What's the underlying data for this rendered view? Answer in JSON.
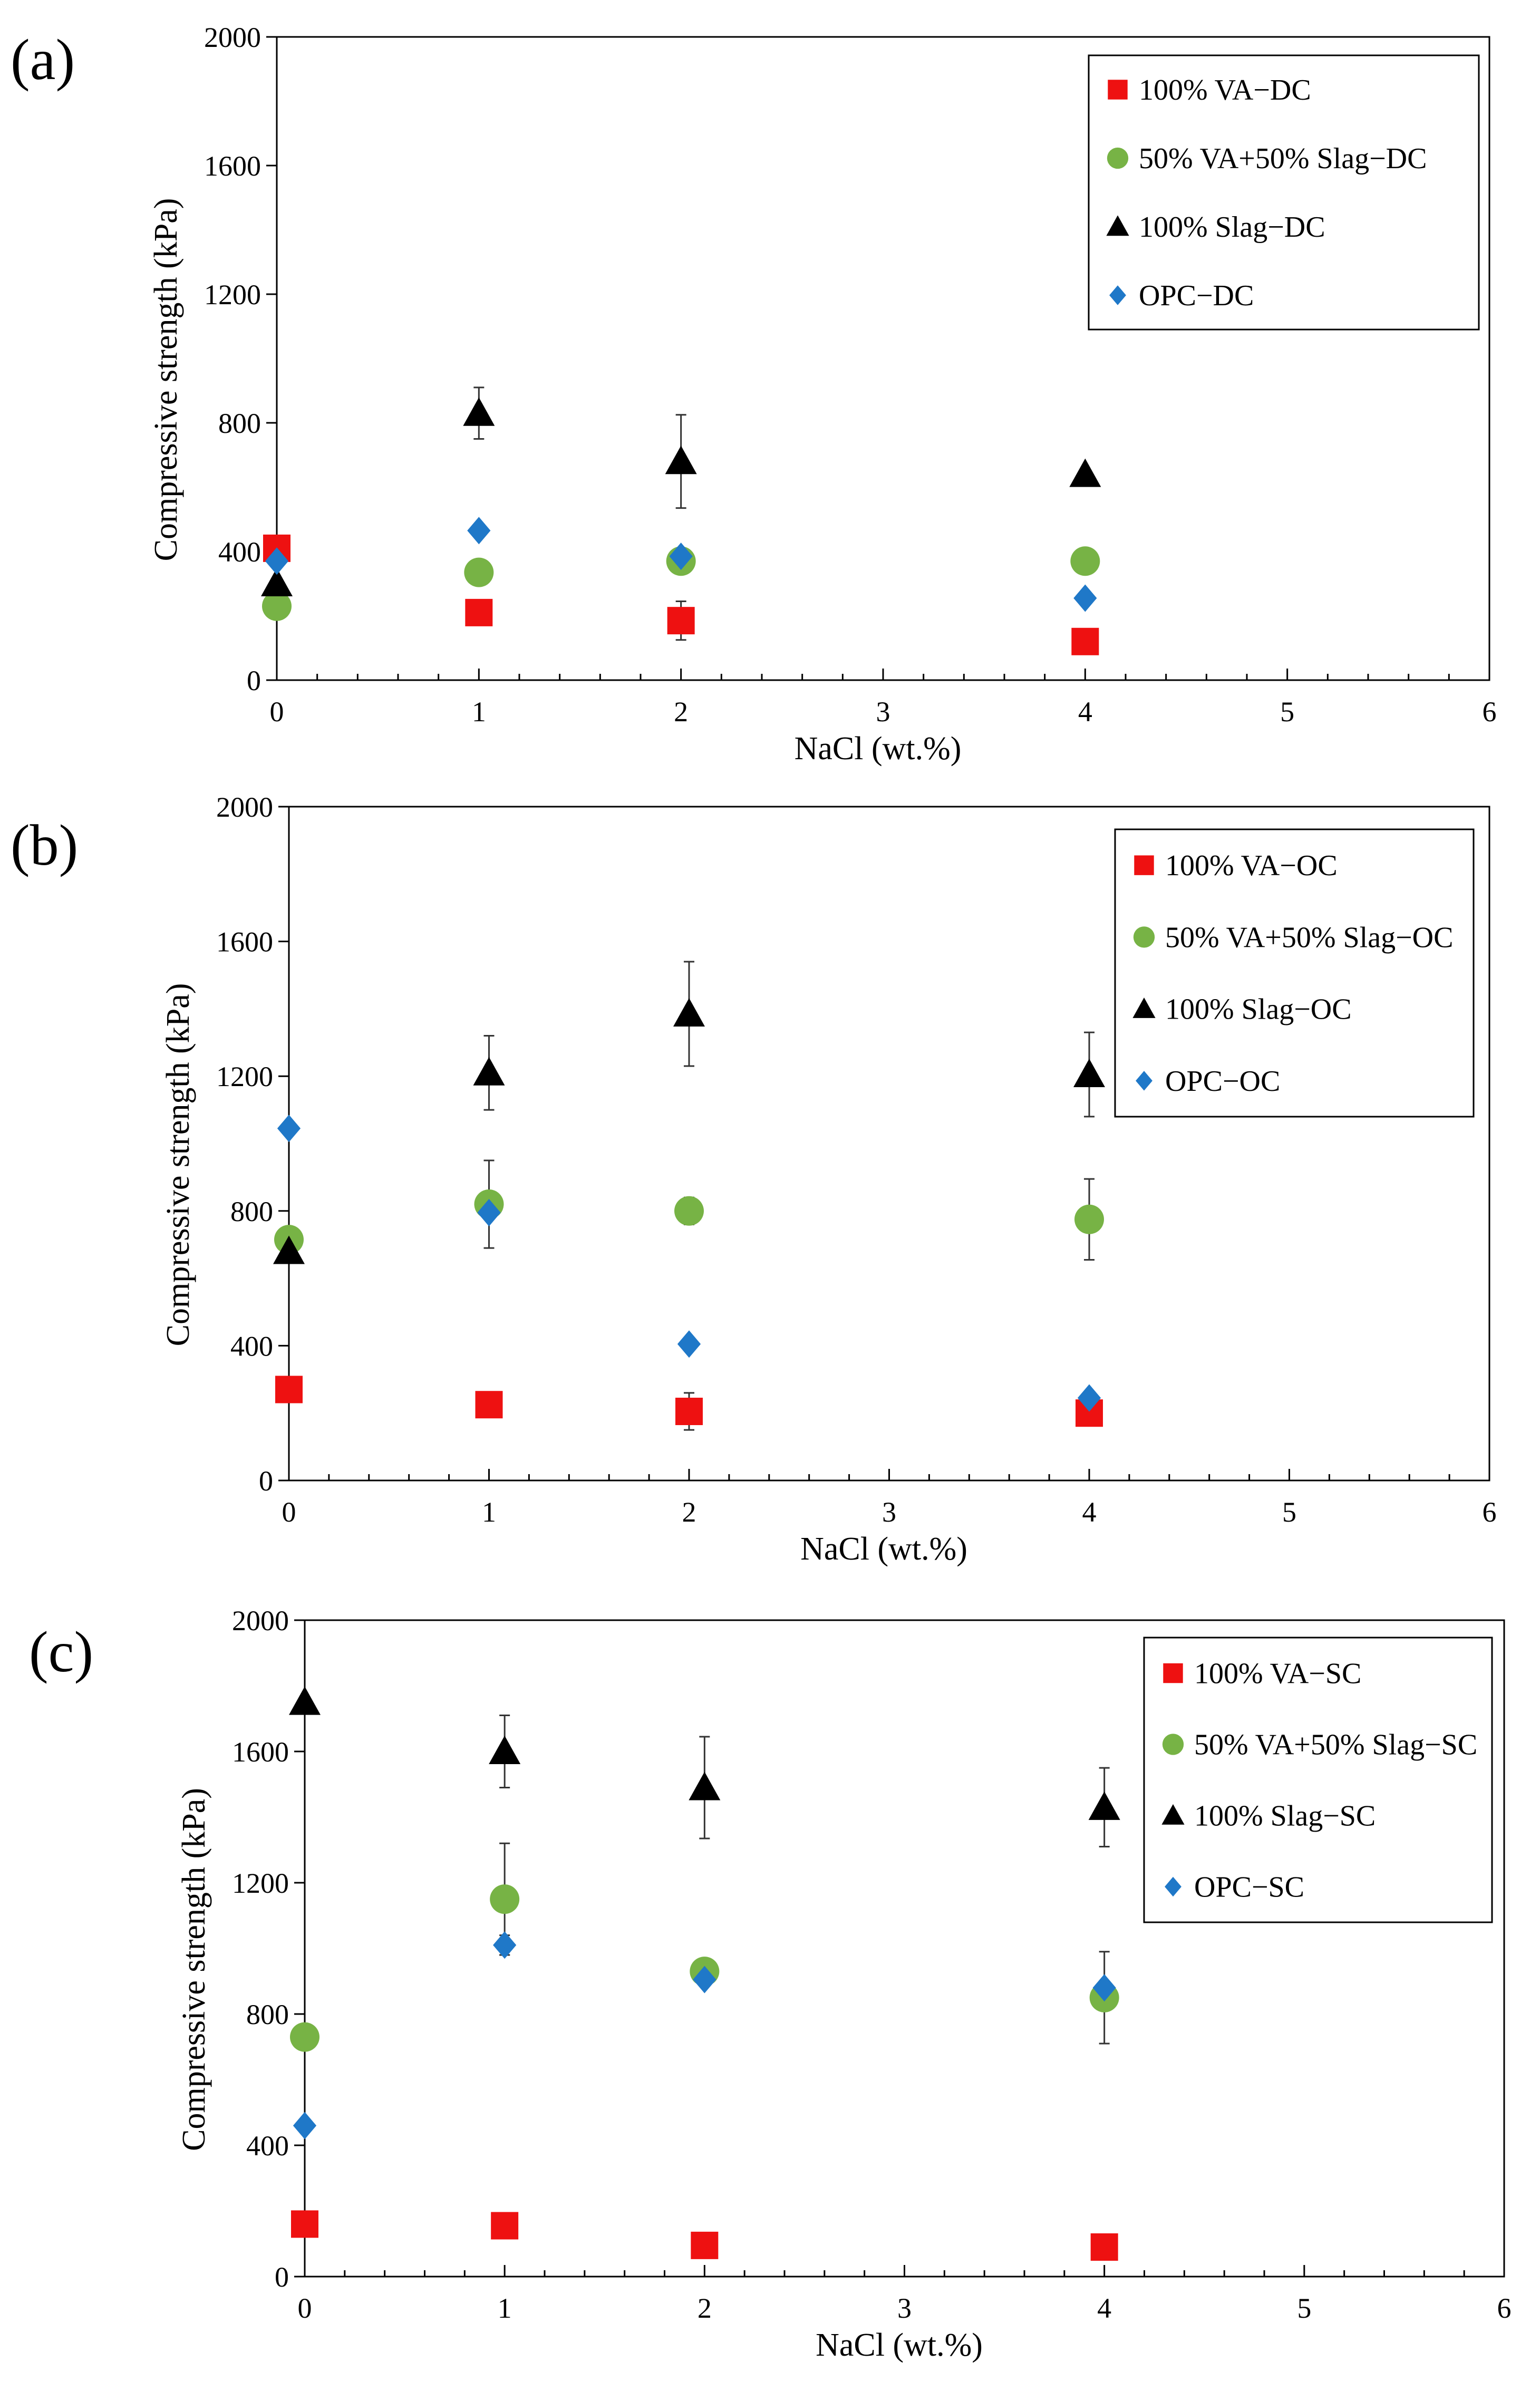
{
  "colors": {
    "va": "#ee1111",
    "mix": "#77b345",
    "slag": "#000000",
    "opc": "#1f78c8"
  },
  "chart_data": [
    {
      "panel_label": "(a)",
      "type": "scatter",
      "xlabel": "NaCl (wt.%)",
      "ylabel": "Compressive  strength  (kPa)",
      "xlim": [
        0,
        6
      ],
      "ylim": [
        0,
        2000
      ],
      "x_ticks": [
        "0",
        "1",
        "2",
        "3",
        "4",
        "5",
        "6"
      ],
      "y_ticks": [
        "0",
        "400",
        "800",
        "1200",
        "1600",
        "2000"
      ],
      "legend_position": "top-right",
      "series": [
        {
          "name": "100% VA−DC",
          "marker": "square",
          "color": "#ee1111",
          "x": [
            0,
            1,
            2,
            4
          ],
          "y": [
            410,
            210,
            185,
            120
          ],
          "err": [
            0,
            0,
            60,
            0
          ]
        },
        {
          "name": "50% VA+50% Slag−DC",
          "marker": "circle",
          "color": "#77b345",
          "x": [
            0,
            1,
            2,
            4
          ],
          "y": [
            230,
            335,
            370,
            370
          ],
          "err": [
            0,
            0,
            0,
            0
          ]
        },
        {
          "name": "100% Slag−DC",
          "marker": "triangle",
          "color": "#000000",
          "x": [
            0,
            1,
            2,
            4
          ],
          "y": [
            300,
            830,
            680,
            640
          ],
          "err": [
            0,
            80,
            145,
            0
          ]
        },
        {
          "name": "OPC−DC",
          "marker": "diamond",
          "color": "#1f78c8",
          "x": [
            0,
            1,
            2,
            4
          ],
          "y": [
            370,
            465,
            385,
            255
          ],
          "err": [
            0,
            0,
            0,
            0
          ]
        }
      ]
    },
    {
      "panel_label": "(b)",
      "type": "scatter",
      "xlabel": "NaCl (wt.%)",
      "ylabel": "Compressive  strength  (kPa)",
      "xlim": [
        0,
        6
      ],
      "ylim": [
        0,
        2000
      ],
      "x_ticks": [
        "0",
        "1",
        "2",
        "3",
        "4",
        "5",
        "6"
      ],
      "y_ticks": [
        "0",
        "400",
        "800",
        "1200",
        "1600",
        "2000"
      ],
      "legend_position": "top-right",
      "series": [
        {
          "name": "100% VA−OC",
          "marker": "square",
          "color": "#ee1111",
          "x": [
            0,
            1,
            2,
            4
          ],
          "y": [
            270,
            225,
            205,
            200
          ],
          "err": [
            0,
            0,
            55,
            0
          ]
        },
        {
          "name": "50% VA+50% Slag−OC",
          "marker": "circle",
          "color": "#77b345",
          "x": [
            0,
            1,
            2,
            4
          ],
          "y": [
            715,
            820,
            800,
            775
          ],
          "err": [
            0,
            130,
            40,
            120
          ]
        },
        {
          "name": "100% Slag−OC",
          "marker": "triangle",
          "color": "#000000",
          "x": [
            0,
            1,
            2,
            4
          ],
          "y": [
            680,
            1210,
            1385,
            1205
          ],
          "err": [
            0,
            110,
            155,
            125
          ]
        },
        {
          "name": "OPC−OC",
          "marker": "diamond",
          "color": "#1f78c8",
          "x": [
            0,
            1,
            2,
            4
          ],
          "y": [
            1045,
            795,
            405,
            245
          ],
          "err": [
            0,
            0,
            0,
            0
          ]
        }
      ]
    },
    {
      "panel_label": "(c)",
      "type": "scatter",
      "xlabel": "NaCl (wt.%)",
      "ylabel": "Compressive  strength  (kPa)",
      "xlim": [
        0,
        6
      ],
      "ylim": [
        0,
        2000
      ],
      "x_ticks": [
        "0",
        "1",
        "2",
        "3",
        "4",
        "5",
        "6"
      ],
      "y_ticks": [
        "0",
        "400",
        "800",
        "1200",
        "1600",
        "2000"
      ],
      "legend_position": "top-right",
      "series": [
        {
          "name": "100% VA−SC",
          "marker": "square",
          "color": "#ee1111",
          "x": [
            0,
            1,
            2,
            4
          ],
          "y": [
            160,
            155,
            95,
            90
          ],
          "err": [
            0,
            0,
            0,
            0
          ]
        },
        {
          "name": "50% VA+50% Slag−SC",
          "marker": "circle",
          "color": "#77b345",
          "x": [
            0,
            1,
            2,
            4
          ],
          "y": [
            730,
            1150,
            930,
            850
          ],
          "err": [
            0,
            170,
            0,
            140
          ]
        },
        {
          "name": "100% Slag−SC",
          "marker": "triangle",
          "color": "#000000",
          "x": [
            0,
            1,
            2,
            4
          ],
          "y": [
            1750,
            1600,
            1490,
            1430
          ],
          "err": [
            0,
            110,
            155,
            120
          ]
        },
        {
          "name": "OPC−SC",
          "marker": "diamond",
          "color": "#1f78c8",
          "x": [
            0,
            1,
            2,
            4
          ],
          "y": [
            460,
            1010,
            905,
            880
          ],
          "err": [
            0,
            30,
            0,
            0
          ]
        }
      ]
    }
  ]
}
